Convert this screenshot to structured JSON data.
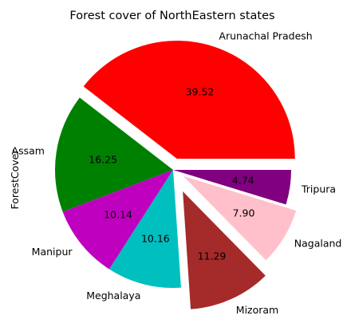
{
  "chart_data": {
    "type": "pie",
    "title": "Forest cover of NorthEastern states",
    "ylabel": "ForestCover",
    "categories": [
      "Arunachal Pradesh",
      "Assam",
      "Manipur",
      "Meghalaya",
      "Mizoram",
      "Nagaland",
      "Tripura"
    ],
    "values": [
      39.52,
      16.25,
      10.14,
      10.16,
      11.29,
      7.9,
      4.74
    ],
    "value_labels": [
      "39.52",
      "16.25",
      "10.14",
      "10.16",
      "11.29",
      "7.90",
      "4.74"
    ],
    "colors": [
      "#ff0000",
      "#008000",
      "#bf00bf",
      "#00bfbf",
      "#a52a2a",
      "#ffc0cb",
      "#800080"
    ],
    "explode": [
      0.1,
      0,
      0,
      0,
      0.2,
      0.1,
      0
    ],
    "start_angle": 0,
    "direction": "counterclockwise",
    "legend": "none"
  }
}
